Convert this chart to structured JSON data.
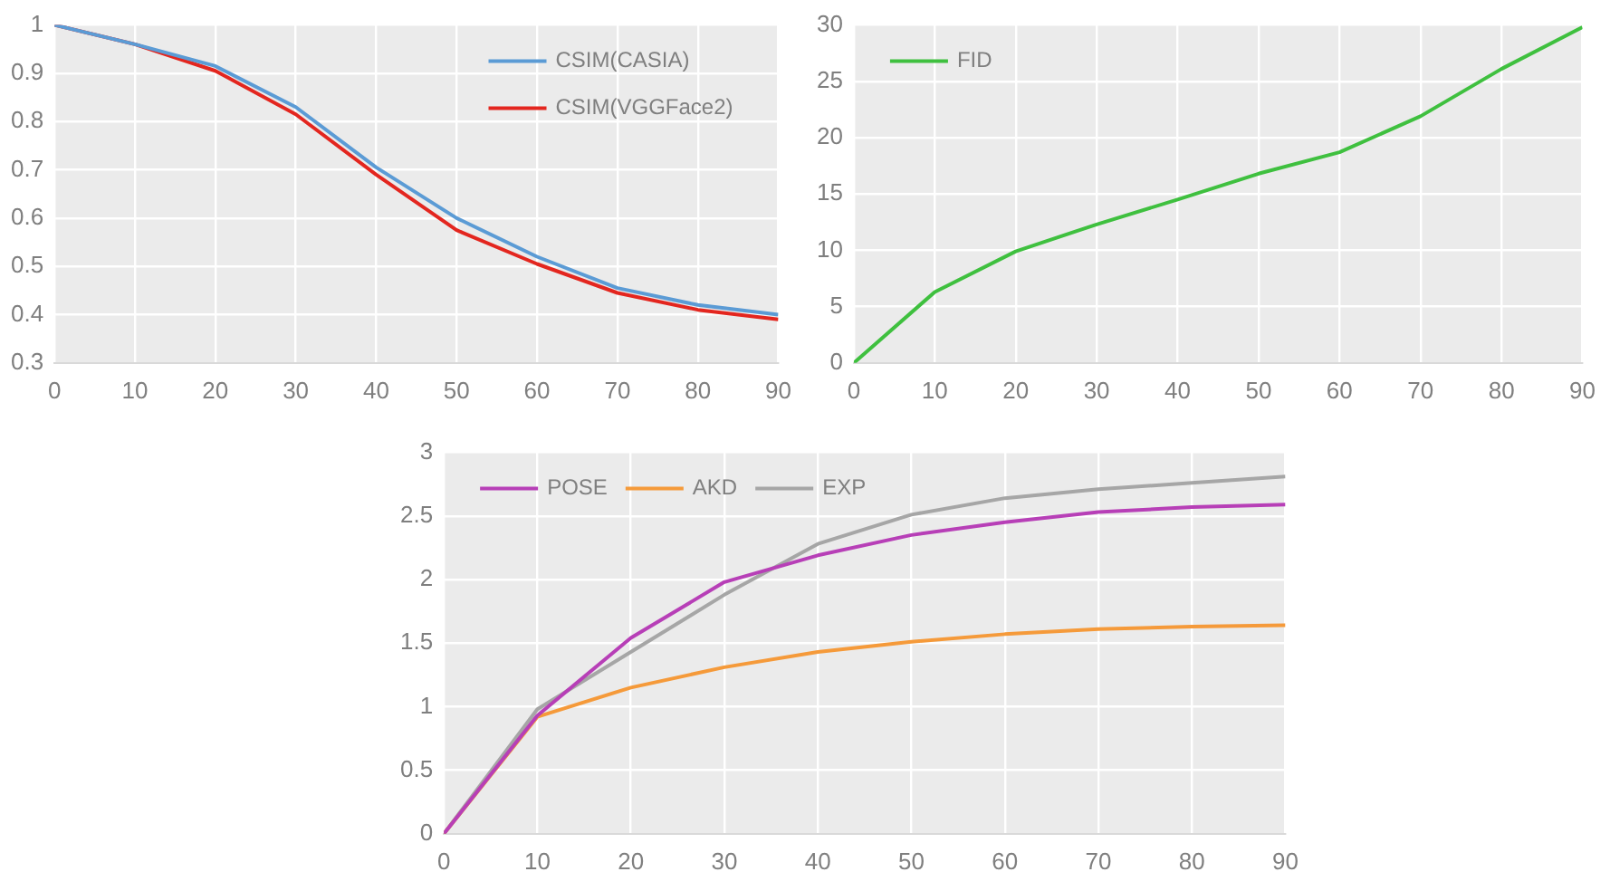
{
  "chart_data": [
    {
      "type": "line",
      "x": [
        0,
        10,
        20,
        30,
        40,
        50,
        60,
        70,
        80,
        90
      ],
      "xlim": [
        0,
        90
      ],
      "xticks": [
        0,
        10,
        20,
        30,
        40,
        50,
        60,
        70,
        80,
        90
      ],
      "ylim": [
        0.3,
        1
      ],
      "yticks": [
        0.3,
        0.4,
        0.5,
        0.6,
        0.7,
        0.8,
        0.9,
        1
      ],
      "grid": true,
      "legend": "top right",
      "marker": "none",
      "series": [
        {
          "name": "CSIM(CASIA)",
          "color": "#5b9bd5",
          "values": [
            1,
            0.96,
            0.915,
            0.83,
            0.705,
            0.6,
            0.52,
            0.455,
            0.42,
            0.4
          ]
        },
        {
          "name": "CSIM(VGGFace2)",
          "color": "#e3261f",
          "values": [
            1,
            0.96,
            0.905,
            0.815,
            0.69,
            0.575,
            0.505,
            0.445,
            0.41,
            0.39
          ]
        }
      ]
    },
    {
      "type": "line",
      "x": [
        0,
        10,
        20,
        30,
        40,
        50,
        60,
        70,
        80,
        90
      ],
      "xlim": [
        0,
        90
      ],
      "xticks": [
        0,
        10,
        20,
        30,
        40,
        50,
        60,
        70,
        80,
        90
      ],
      "ylim": [
        0,
        30
      ],
      "yticks": [
        0,
        5,
        10,
        15,
        20,
        25,
        30
      ],
      "grid": true,
      "legend": "top left",
      "marker": "none",
      "series": [
        {
          "name": "FID",
          "color": "#3fc03f",
          "values": [
            0,
            6.3,
            9.9,
            12.3,
            14.5,
            16.8,
            18.7,
            21.9,
            26.1,
            29.8
          ]
        }
      ]
    },
    {
      "type": "line",
      "x": [
        0,
        10,
        20,
        30,
        40,
        50,
        60,
        70,
        80,
        90
      ],
      "xlim": [
        0,
        90
      ],
      "xticks": [
        0,
        10,
        20,
        30,
        40,
        50,
        60,
        70,
        80,
        90
      ],
      "ylim": [
        0,
        3
      ],
      "yticks": [
        0,
        0.5,
        1,
        1.5,
        2,
        2.5,
        3
      ],
      "grid": true,
      "legend": "top left",
      "marker": "none",
      "series": [
        {
          "name": "POSE",
          "color": "#b73fb7",
          "values": [
            0,
            0.93,
            1.54,
            1.98,
            2.19,
            2.35,
            2.45,
            2.53,
            2.57,
            2.59
          ]
        },
        {
          "name": "AKD",
          "color": "#f59a3a",
          "values": [
            0,
            0.92,
            1.15,
            1.31,
            1.43,
            1.51,
            1.57,
            1.61,
            1.63,
            1.64
          ]
        },
        {
          "name": "EXP",
          "color": "#a6a6a6",
          "values": [
            0,
            0.98,
            1.43,
            1.88,
            2.28,
            2.51,
            2.64,
            2.71,
            2.76,
            2.81
          ]
        }
      ]
    }
  ]
}
